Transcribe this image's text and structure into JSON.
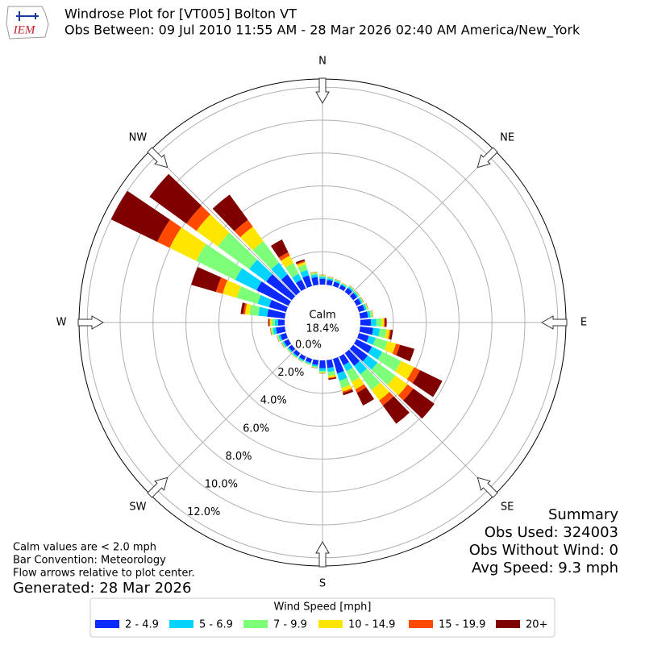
{
  "header": {
    "logo_text": "IEM",
    "title": "Windrose Plot for [VT005] Bolton  VT",
    "subtitle": "Obs Between: 09 Jul 2010 11:55 AM - 28 Mar 2026 02:40 AM America/New_York"
  },
  "chart_data": {
    "type": "windrose",
    "compass": [
      "N",
      "NE",
      "E",
      "SE",
      "S",
      "SW",
      "W",
      "NW"
    ],
    "x": [
      0,
      10,
      20,
      30,
      40,
      50,
      60,
      70,
      80,
      90,
      100,
      110,
      120,
      130,
      140,
      150,
      160,
      170,
      180,
      190,
      200,
      210,
      220,
      230,
      240,
      250,
      260,
      270,
      280,
      290,
      300,
      310,
      320,
      330,
      340,
      350
    ],
    "ylim": [
      0,
      12.4
    ],
    "yticks": [
      {
        "value": 0,
        "label": "0.0%"
      },
      {
        "value": 2,
        "label": "2.0%"
      },
      {
        "value": 4,
        "label": "4.0%"
      },
      {
        "value": 6,
        "label": "6.0%"
      },
      {
        "value": 8,
        "label": "8.0%"
      },
      {
        "value": 10,
        "label": "10.0%"
      },
      {
        "value": 12,
        "label": "12.0%"
      }
    ],
    "grid": true,
    "calm": {
      "label": "Calm",
      "value": 18.4,
      "value_label": "18.4%"
    },
    "legend_title": "Wind Speed [mph]",
    "series": [
      {
        "name": "2 - 4.9",
        "color": "#0a2aff",
        "values": [
          0.36,
          0.3,
          0.27,
          0.24,
          0.3,
          0.3,
          0.3,
          0.36,
          0.48,
          0.64,
          0.8,
          0.63,
          1.04,
          1.1,
          0.95,
          0.59,
          0.92,
          0.48,
          0.48,
          0.3,
          0.24,
          0.24,
          0.24,
          0.24,
          0.3,
          0.36,
          0.54,
          0.4,
          1.08,
          1.08,
          2.16,
          1.93,
          1.31,
          0.59,
          0.68,
          0.48
        ]
      },
      {
        "name": "5 - 6.9",
        "color": "#00d4ff",
        "values": [
          0.12,
          0.1,
          0.09,
          0.08,
          0.1,
          0.1,
          0.1,
          0.12,
          0.16,
          0.32,
          0.4,
          0.42,
          0.7,
          0.73,
          0.64,
          0.4,
          0.46,
          0.24,
          0.16,
          0.1,
          0.08,
          0.08,
          0.08,
          0.08,
          0.1,
          0.12,
          0.18,
          0.2,
          0.54,
          0.72,
          1.44,
          1.28,
          0.88,
          0.4,
          0.34,
          0.16
        ]
      },
      {
        "name": "7 - 9.9",
        "color": "#7dff7a",
        "values": [
          0.07,
          0.06,
          0.05,
          0.05,
          0.06,
          0.06,
          0.06,
          0.07,
          0.1,
          0.32,
          0.4,
          0.77,
          1.28,
          1.34,
          1.17,
          0.73,
          0.46,
          0.24,
          0.1,
          0.06,
          0.05,
          0.05,
          0.05,
          0.05,
          0.06,
          0.07,
          0.11,
          0.2,
          0.54,
          1.32,
          2.64,
          2.35,
          1.61,
          0.73,
          0.34,
          0.1
        ]
      },
      {
        "name": "10 - 14.9",
        "color": "#ffe600",
        "values": [
          0.03,
          0.02,
          0.02,
          0.02,
          0.02,
          0.02,
          0.02,
          0.03,
          0.04,
          0.16,
          0.2,
          0.53,
          0.87,
          0.92,
          0.8,
          0.5,
          0.23,
          0.12,
          0.04,
          0.02,
          0.02,
          0.02,
          0.02,
          0.02,
          0.02,
          0.03,
          0.04,
          0.1,
          0.27,
          0.9,
          1.8,
          1.61,
          1.1,
          0.5,
          0.17,
          0.04
        ]
      },
      {
        "name": "15 - 19.9",
        "color": "#ff4a00",
        "values": [
          0.01,
          0.01,
          0.01,
          0.01,
          0.01,
          0.01,
          0.01,
          0.01,
          0.01,
          0.06,
          0.08,
          0.25,
          0.41,
          0.43,
          0.37,
          0.23,
          0.09,
          0.05,
          0.01,
          0.01,
          0.01,
          0.01,
          0.01,
          0.01,
          0.01,
          0.01,
          0.02,
          0.04,
          0.11,
          0.42,
          0.84,
          0.75,
          0.51,
          0.23,
          0.07,
          0.01
        ]
      },
      {
        "name": "20+",
        "color": "#800000",
        "values": [
          0.01,
          0.01,
          0.01,
          0,
          0.01,
          0.01,
          0.01,
          0.01,
          0.01,
          0.1,
          0.12,
          0.91,
          1.5,
          1.59,
          1.38,
          0.86,
          0.14,
          0.07,
          0.01,
          0.01,
          0,
          0,
          0,
          0,
          0.01,
          0.01,
          0.01,
          0.06,
          0.16,
          1.56,
          3.12,
          2.78,
          1.9,
          0.86,
          0.1,
          0.01
        ]
      }
    ]
  },
  "summary": {
    "title": "Summary",
    "lines": [
      "Obs Used: 324003",
      "Obs Without Wind: 0",
      "Avg Speed: 9.3 mph"
    ]
  },
  "notes": [
    "Calm values are < 2.0 mph",
    "Bar Convention: Meteorology",
    "Flow arrows relative to plot center."
  ],
  "generated": "Generated: 28 Mar 2026"
}
